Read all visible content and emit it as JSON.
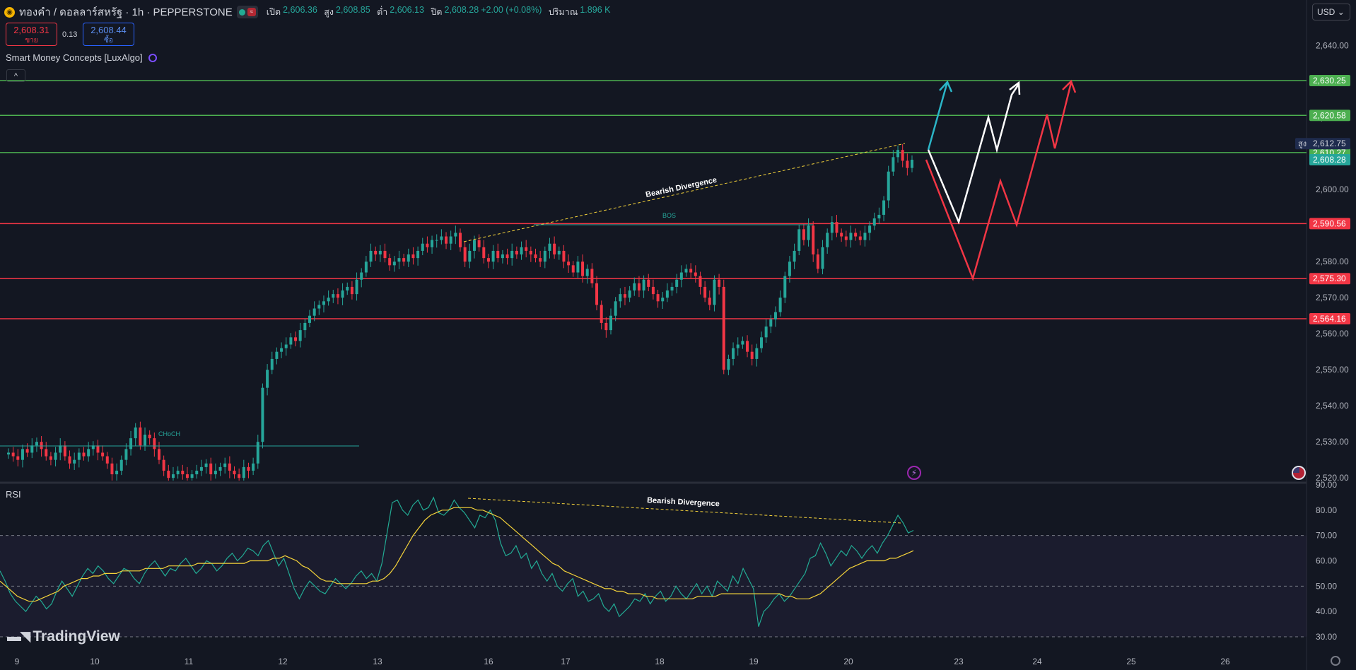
{
  "header": {
    "title": "ทองคำ / ดอลลาร์สหรัฐ · 1h · PEPPERSTONE",
    "ohlc": [
      {
        "label": "เปิด",
        "value": "2,606.36"
      },
      {
        "label": "สูง",
        "value": "2,608.85"
      },
      {
        "label": "ต่ำ",
        "value": "2,606.13"
      },
      {
        "label": "ปิด",
        "value": "2,608.28"
      }
    ],
    "change": "+2.00 (+0.08%)",
    "volume_label": "ปริมาณ",
    "volume_value": "1.896 K"
  },
  "trade": {
    "sell_price": "2,608.31",
    "sell_label": "ขาย",
    "spread": "0.13",
    "buy_price": "2,608.44",
    "buy_label": "ซื้อ"
  },
  "indicator": {
    "name": "Smart Money Concepts [LuxAlgo]"
  },
  "currency": "USD",
  "rsi_label": "RSI",
  "brand": "TradingView",
  "colors": {
    "up": "#26a69a",
    "down": "#f23645",
    "green_level": "#4caf50",
    "red_level": "#f23645",
    "rsi": "#22ab94",
    "rsi_ma": "#f5d33a",
    "bg": "#131722"
  },
  "chart_data": {
    "type": "candlestick",
    "price_axis": {
      "ticks": [
        "2,640.00",
        "2,620.00",
        "2,610.00",
        "2,600.00",
        "2,580.00",
        "2,570.00",
        "2,560.00",
        "2,550.00",
        "2,540.00",
        "2,530.00",
        "2,520.00"
      ],
      "ylim": [
        2520,
        2645
      ]
    },
    "time_axis": {
      "ticks": [
        "9",
        "10",
        "11",
        "12",
        "13",
        "16",
        "17",
        "18",
        "19",
        "20",
        "23",
        "24",
        "25",
        "26"
      ]
    },
    "levels": [
      {
        "label": "2,630.25",
        "value": 2630.25,
        "color": "green"
      },
      {
        "label": "2,620.58",
        "value": 2620.58,
        "color": "green"
      },
      {
        "label": "2,610.27",
        "value": 2610.27,
        "color": "green"
      },
      {
        "label": "2,590.56",
        "value": 2590.56,
        "color": "red"
      },
      {
        "label": "2,575.30",
        "value": 2575.3,
        "color": "red"
      },
      {
        "label": "2,564.16",
        "value": 2564.16,
        "color": "red"
      }
    ],
    "high_label": {
      "label": "สูง",
      "value": "2,612.75"
    },
    "last_price": "2,608.28",
    "annotations": [
      {
        "text": "Bearish Divergence",
        "pane": "price"
      },
      {
        "text": "Bearish Divergence",
        "pane": "rsi"
      },
      {
        "text": "BOS",
        "pane": "price"
      },
      {
        "text": "CHoCH",
        "pane": "price"
      }
    ],
    "close_series": [
      2527,
      2526,
      2525,
      2528,
      2527,
      2529,
      2530,
      2528,
      2526,
      2525,
      2527,
      2529,
      2526,
      2524,
      2525,
      2527,
      2526,
      2528,
      2529,
      2527,
      2526,
      2524,
      2521,
      2522,
      2525,
      2528,
      2531,
      2534,
      2529,
      2532,
      2531,
      2528,
      2525,
      2522,
      2520,
      2521,
      2522,
      2521,
      2520,
      2521,
      2522,
      2523,
      2524,
      2521,
      2522,
      2523,
      2524,
      2522,
      2521,
      2520,
      2523,
      2522,
      2524,
      2530,
      2545,
      2550,
      2553,
      2555,
      2556,
      2557,
      2559,
      2558,
      2561,
      2563,
      2565,
      2567,
      2568,
      2569,
      2570,
      2571,
      2570,
      2572,
      2573,
      2571,
      2575,
      2577,
      2580,
      2583,
      2582,
      2583,
      2581,
      2579,
      2580,
      2581,
      2580,
      2582,
      2581,
      2583,
      2585,
      2584,
      2586,
      2586,
      2587,
      2585,
      2587,
      2588,
      2584,
      2580,
      2583,
      2586,
      2584,
      2581,
      2580,
      2583,
      2581,
      2582,
      2581,
      2583,
      2582,
      2584,
      2583,
      2582,
      2581,
      2580,
      2583,
      2585,
      2582,
      2583,
      2580,
      2579,
      2577,
      2580,
      2576,
      2578,
      2574,
      2568,
      2563,
      2561,
      2565,
      2569,
      2571,
      2570,
      2572,
      2574,
      2572,
      2575,
      2573,
      2571,
      2569,
      2570,
      2572,
      2573,
      2575,
      2577,
      2578,
      2577,
      2576,
      2573,
      2570,
      2568,
      2575,
      2573,
      2550,
      2553,
      2556,
      2557,
      2558,
      2555,
      2553,
      2556,
      2559,
      2562,
      2564,
      2566,
      2570,
      2576,
      2580,
      2583,
      2589,
      2586,
      2590,
      2582,
      2578,
      2584,
      2588,
      2591,
      2588,
      2587,
      2586,
      2588,
      2587,
      2586,
      2588,
      2590,
      2592,
      2593,
      2597,
      2605,
      2609,
      2611,
      2608,
      2606,
      2608.28
    ],
    "rsi_axis": {
      "ticks": [
        "90.00",
        "80.00",
        "70.00",
        "60.00",
        "50.00",
        "40.00",
        "30.00"
      ],
      "ylim": [
        27,
        90
      ],
      "bands": [
        70,
        50,
        30
      ]
    },
    "rsi_series": [
      56,
      52,
      47,
      44,
      42,
      40,
      43,
      46,
      44,
      41,
      43,
      48,
      52,
      49,
      46,
      50,
      54,
      57,
      55,
      58,
      56,
      53,
      51,
      54,
      57,
      56,
      53,
      51,
      55,
      58,
      60,
      57,
      54,
      57,
      56,
      59,
      61,
      58,
      55,
      57,
      60,
      59,
      56,
      58,
      61,
      63,
      60,
      62,
      65,
      64,
      62,
      66,
      68,
      63,
      58,
      61,
      55,
      49,
      45,
      49,
      52,
      50,
      48,
      47,
      50,
      53,
      51,
      49,
      51,
      54,
      56,
      53,
      55,
      52,
      59,
      71,
      83,
      84,
      80,
      78,
      82,
      84,
      80,
      81,
      85,
      79,
      78,
      80,
      84,
      81,
      79,
      76,
      73,
      78,
      77,
      80,
      76,
      67,
      62,
      63,
      66,
      61,
      63,
      57,
      60,
      55,
      52,
      55,
      50,
      48,
      51,
      53,
      46,
      48,
      44,
      45,
      47,
      42,
      40,
      43,
      38,
      40,
      42,
      45,
      44,
      47,
      43,
      46,
      48,
      44,
      46,
      50,
      47,
      45,
      48,
      51,
      47,
      50,
      46,
      52,
      50,
      48,
      54,
      51,
      57,
      53,
      49,
      34,
      40,
      42,
      45,
      47,
      44,
      46,
      49,
      52,
      55,
      61,
      62,
      67,
      63,
      58,
      61,
      64,
      62,
      66,
      64,
      61,
      64,
      66,
      63,
      67,
      70,
      74,
      78,
      75,
      71,
      72
    ],
    "rsi_ma_series": [
      52,
      50,
      48,
      46,
      45,
      44,
      44,
      45,
      46,
      47,
      48,
      50,
      51,
      52,
      53,
      53,
      54,
      54,
      55,
      55,
      55,
      56,
      56,
      56,
      56,
      57,
      57,
      57,
      57,
      58,
      58,
      58,
      58,
      58,
      59,
      59,
      59,
      59,
      59,
      59,
      59,
      59,
      59,
      60,
      60,
      60,
      60,
      61,
      61,
      62,
      61,
      60,
      58,
      57,
      55,
      53,
      52,
      52,
      51,
      51,
      51,
      51,
      51,
      51,
      52,
      52,
      53,
      55,
      58,
      62,
      66,
      70,
      73,
      76,
      78,
      79,
      80,
      80,
      81,
      81,
      81,
      81,
      80,
      80,
      79,
      78,
      77,
      75,
      73,
      71,
      69,
      67,
      65,
      63,
      61,
      59,
      58,
      56,
      55,
      54,
      53,
      52,
      51,
      50,
      49,
      49,
      48,
      48,
      47,
      47,
      47,
      46,
      46,
      45,
      45,
      45,
      45,
      45,
      45,
      45,
      46,
      46,
      46,
      46,
      47,
      47,
      47,
      47,
      47,
      47,
      47,
      47,
      47,
      47,
      47,
      46,
      46,
      45,
      45,
      45,
      46,
      47,
      49,
      51,
      53,
      55,
      57,
      58,
      59,
      60,
      60,
      60,
      60,
      61,
      61,
      62,
      63,
      64
    ]
  }
}
